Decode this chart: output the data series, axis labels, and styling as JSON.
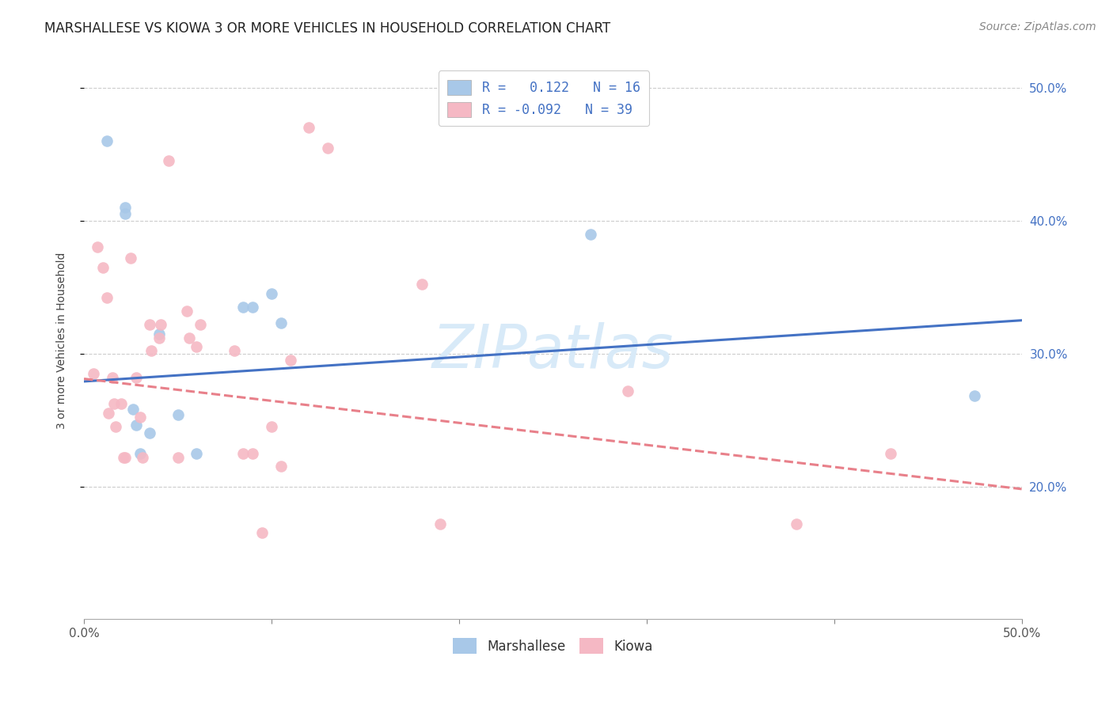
{
  "title": "MARSHALLESE VS KIOWA 3 OR MORE VEHICLES IN HOUSEHOLD CORRELATION CHART",
  "source": "Source: ZipAtlas.com",
  "ylabel": "3 or more Vehicles in Household",
  "watermark": "ZIPatlas",
  "legend_blue_r_val": "0.122",
  "legend_blue_n_val": "16",
  "legend_pink_r_val": "-0.092",
  "legend_pink_n_val": "39",
  "legend_label_blue": "Marshallese",
  "legend_label_pink": "Kiowa",
  "xmin": 0.0,
  "xmax": 0.5,
  "ymin": 0.1,
  "ymax": 0.52,
  "yticks": [
    0.2,
    0.3,
    0.4,
    0.5
  ],
  "ytick_labels": [
    "20.0%",
    "30.0%",
    "40.0%",
    "50.0%"
  ],
  "xticks": [
    0.0,
    0.1,
    0.2,
    0.3,
    0.4,
    0.5
  ],
  "blue_scatter_x": [
    0.012,
    0.022,
    0.022,
    0.026,
    0.028,
    0.03,
    0.035,
    0.04,
    0.05,
    0.06,
    0.085,
    0.09,
    0.1,
    0.105,
    0.27,
    0.475
  ],
  "blue_scatter_y": [
    0.46,
    0.41,
    0.405,
    0.258,
    0.246,
    0.225,
    0.24,
    0.315,
    0.254,
    0.225,
    0.335,
    0.335,
    0.345,
    0.323,
    0.39,
    0.268
  ],
  "pink_scatter_x": [
    0.005,
    0.007,
    0.01,
    0.012,
    0.013,
    0.015,
    0.016,
    0.017,
    0.02,
    0.021,
    0.022,
    0.025,
    0.028,
    0.03,
    0.031,
    0.035,
    0.036,
    0.04,
    0.041,
    0.045,
    0.05,
    0.055,
    0.056,
    0.06,
    0.062,
    0.08,
    0.085,
    0.09,
    0.095,
    0.1,
    0.105,
    0.11,
    0.12,
    0.13,
    0.18,
    0.19,
    0.29,
    0.38,
    0.43
  ],
  "pink_scatter_y": [
    0.285,
    0.38,
    0.365,
    0.342,
    0.255,
    0.282,
    0.262,
    0.245,
    0.262,
    0.222,
    0.222,
    0.372,
    0.282,
    0.252,
    0.222,
    0.322,
    0.302,
    0.312,
    0.322,
    0.445,
    0.222,
    0.332,
    0.312,
    0.305,
    0.322,
    0.302,
    0.225,
    0.225,
    0.165,
    0.245,
    0.215,
    0.295,
    0.47,
    0.455,
    0.352,
    0.172,
    0.272,
    0.172,
    0.225
  ],
  "blue_line_x": [
    0.0,
    0.5
  ],
  "blue_line_y_start": 0.279,
  "blue_line_y_end": 0.325,
  "pink_line_x": [
    0.0,
    0.5
  ],
  "pink_line_y_start": 0.281,
  "pink_line_y_end": 0.198,
  "title_fontsize": 12,
  "source_fontsize": 10,
  "axis_fontsize": 10,
  "tick_fontsize": 11,
  "legend_fontsize": 12,
  "scatter_size": 110,
  "blue_color": "#A8C8E8",
  "pink_color": "#F5B8C4",
  "blue_line_color": "#4472C4",
  "pink_line_color": "#E8808A",
  "grid_color": "#CCCCCC",
  "bg_color": "#FFFFFF",
  "watermark_color": "#D8EAF8",
  "watermark_fontsize": 55
}
